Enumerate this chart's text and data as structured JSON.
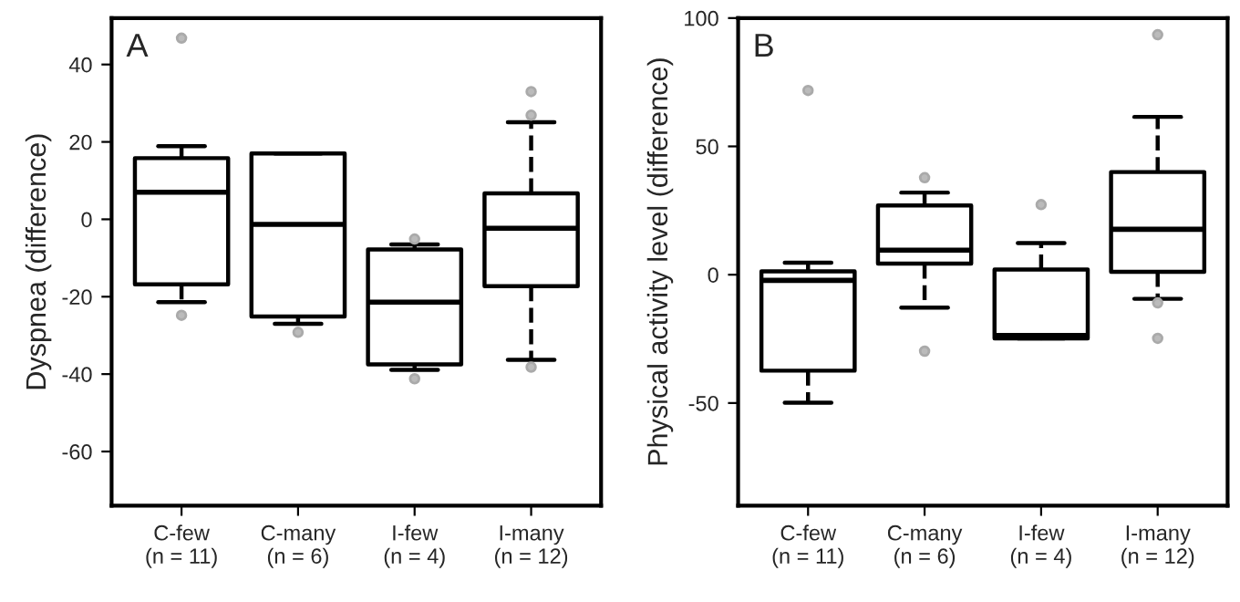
{
  "chart_data": [
    {
      "type": "box",
      "ylabel": "Dyspnea (difference)",
      "annotations": [
        "A"
      ],
      "categories": [
        "C-few\n(n = 11)",
        "C-many\n(n = 6)",
        "I-few\n(n = 4)",
        "I-many\n(n = 12)"
      ],
      "ylim": [
        -74,
        52
      ],
      "yticks": [
        -60,
        -40,
        -20,
        0,
        20,
        40
      ],
      "grid": false,
      "line_style": "dashed",
      "marker": "circle",
      "boxes": [
        {
          "low": -21.4,
          "q1": -16.8,
          "median": 7.0,
          "q3": 15.8,
          "high": 18.9,
          "outliers": [
            46.8,
            -24.8
          ]
        },
        {
          "low": -27.0,
          "q1": -25.1,
          "median": -1.3,
          "q3": 17.0,
          "high": 17.0,
          "outliers": [
            -29.2
          ]
        },
        {
          "low": -38.9,
          "q1": -37.5,
          "median": -21.4,
          "q3": -7.8,
          "high": -6.5,
          "outliers": [
            -5.1,
            -41.2
          ]
        },
        {
          "low": -36.3,
          "q1": -17.3,
          "median": -2.3,
          "q3": 6.7,
          "high": 25.1,
          "outliers": [
            33.0,
            26.9,
            -38.2
          ]
        }
      ]
    },
    {
      "type": "box",
      "ylabel": "Physical activity level (difference)",
      "annotations": [
        "B"
      ],
      "categories": [
        "C-few\n(n = 11)",
        "C-many\n(n = 6)",
        "I-few\n(n = 4)",
        "I-many\n(n = 12)"
      ],
      "ylim": [
        -90,
        100
      ],
      "yticks": [
        -50,
        0,
        50,
        100
      ],
      "grid": false,
      "line_style": "dashed",
      "marker": "circle",
      "boxes": [
        {
          "low": -49.9,
          "q1": -37.4,
          "median": -2.2,
          "q3": 1.3,
          "high": 4.7,
          "outliers": [
            71.8
          ]
        },
        {
          "low": -12.8,
          "q1": 4.3,
          "median": 9.6,
          "q3": 27,
          "high": 32,
          "outliers": [
            37.8,
            -29.8
          ]
        },
        {
          "low": -24.8,
          "q1": -24.8,
          "median": -23.7,
          "q3": 2.0,
          "high": 12.3,
          "outliers": [
            27.3
          ]
        },
        {
          "low": -9.4,
          "q1": 1.1,
          "median": 17.7,
          "q3": 40,
          "high": 61.5,
          "outliers": [
            93.5,
            -11,
            -24.8
          ]
        }
      ]
    }
  ]
}
